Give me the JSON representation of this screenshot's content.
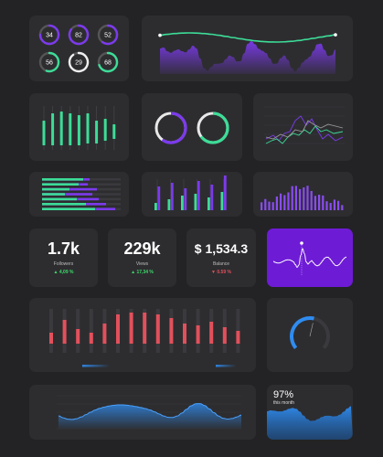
{
  "theme": {
    "background": "#232325",
    "card": "#2d2d30",
    "accent_purple": "#7c3aed",
    "accent_green": "#3ddc97",
    "accent_red": "#e2505b",
    "accent_blue": "#2f8cf0",
    "highlight_purple": "#6e1bd6"
  },
  "rings": [
    {
      "value": "34",
      "color": "purple",
      "fraction": 0.75
    },
    {
      "value": "82",
      "color": "purple",
      "fraction": 0.85
    },
    {
      "value": "52",
      "color": "purple",
      "fraction": 0.6
    },
    {
      "value": "56",
      "color": "green",
      "fraction": 0.55
    },
    {
      "value": "29",
      "color": "white",
      "fraction": 0.9
    },
    {
      "value": "68",
      "color": "green",
      "fraction": 0.7
    }
  ],
  "donuts": [
    {
      "color": "purple",
      "fraction": 0.6
    },
    {
      "color": "green",
      "fraction": 0.65
    }
  ],
  "stats": [
    {
      "value": "1.7k",
      "label": "Followers",
      "change": "▲ 4,09 %",
      "trend": "up"
    },
    {
      "value": "229k",
      "label": "Views",
      "change": "▲ 17,34 %",
      "trend": "up"
    },
    {
      "value": "$ 1,534.3",
      "label": "Balance",
      "change": "▼ 0.59 %",
      "trend": "down"
    }
  ],
  "gauge": {
    "fraction": 0.55
  },
  "progress_card": {
    "value": "97%",
    "label": "this month"
  }
}
